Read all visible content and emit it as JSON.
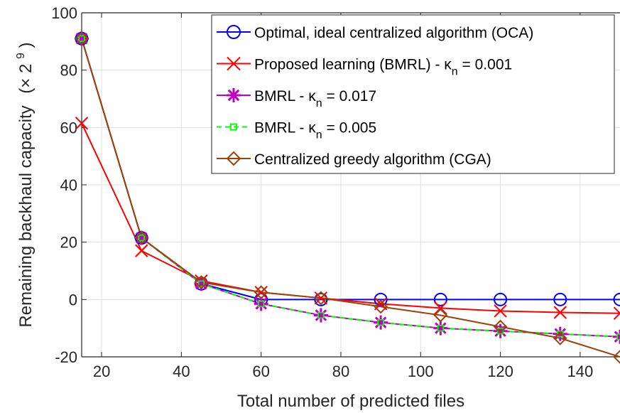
{
  "chart_data": {
    "type": "line",
    "xlabel": "Total number of predicted files",
    "ylabel": "Remaining backhaul capacity",
    "ylabel_unit": "(× 2",
    "ylabel_unit_exp": "9",
    "ylabel_unit_close": ")",
    "xlim": [
      15,
      150
    ],
    "ylim": [
      -20,
      100
    ],
    "xticks": [
      20,
      40,
      60,
      80,
      100,
      120,
      140
    ],
    "yticks": [
      -20,
      0,
      20,
      40,
      60,
      80,
      100
    ],
    "grid": true,
    "legend_position": "top-right",
    "x": [
      15,
      30,
      45,
      60,
      75,
      90,
      105,
      120,
      135,
      150
    ],
    "series": [
      {
        "name": "Optimal, ideal centralized algorithm (OCA)",
        "color": "#0000ff",
        "marker": "circle",
        "dash": "solid",
        "values": [
          91,
          21.5,
          5.5,
          0,
          0,
          0,
          0,
          0,
          0,
          0
        ]
      },
      {
        "name": "Proposed learning (BMRL) - κ",
        "name_sub": "n",
        "name_tail": " = 0.001",
        "color": "#ff0000",
        "marker": "x",
        "dash": "solid",
        "values": [
          61.5,
          17,
          6.5,
          2.5,
          0.5,
          -1.5,
          -3,
          -4,
          -4.5,
          -4.8
        ]
      },
      {
        "name": "BMRL - κ",
        "name_sub": "n",
        "name_tail": " = 0.017",
        "color": "#bf00bf",
        "marker": "asterisk",
        "dash": "solid",
        "values": [
          91,
          21.5,
          5.5,
          -1.5,
          -5.5,
          -8,
          -10,
          -11,
          -12,
          -13
        ]
      },
      {
        "name": "BMRL - κ",
        "name_sub": "n",
        "name_tail": " = 0.005",
        "color": "#00ff00",
        "marker": "square",
        "dash": "dashed",
        "values": [
          91,
          21.5,
          5.5,
          -1.5,
          -5.5,
          -8,
          -10,
          -11,
          -12,
          -13
        ]
      },
      {
        "name": "Centralized greedy algorithm (CGA)",
        "color": "#a0400a",
        "marker": "diamond",
        "dash": "solid",
        "values": [
          91,
          21.5,
          6,
          2.5,
          0.5,
          -2.5,
          -5.5,
          -9.5,
          -13.5,
          -20
        ]
      }
    ]
  }
}
